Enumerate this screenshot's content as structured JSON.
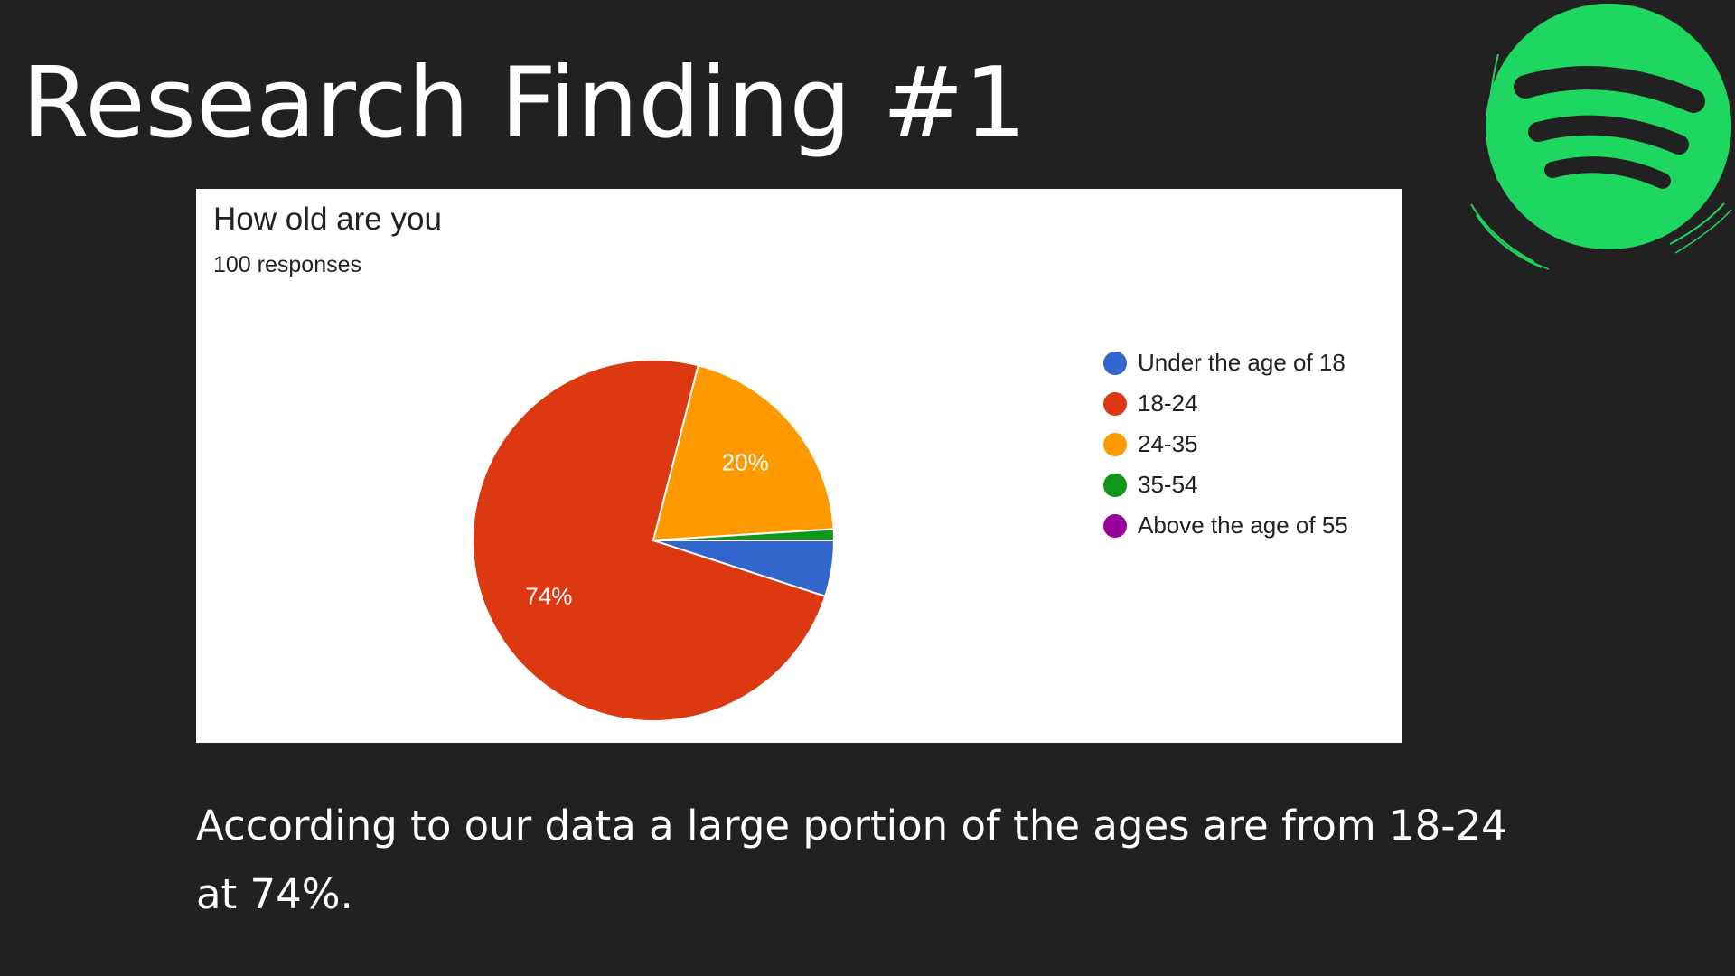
{
  "slide": {
    "title": "Research Finding #1",
    "caption": "According to our data a large portion of the ages are from 18-24 at 74%."
  },
  "logo": {
    "icon": "spotify-logo-icon",
    "color": "#1ed760"
  },
  "chart_data": {
    "type": "pie",
    "title": "How old are you",
    "subtitle": "100 responses",
    "legend_position": "right",
    "slices": [
      {
        "label": "Under the age of 18",
        "value": 5,
        "color": "#3366cc",
        "data_label": ""
      },
      {
        "label": "18-24",
        "value": 74,
        "color": "#dc3912",
        "data_label": "74%"
      },
      {
        "label": "24-35",
        "value": 20,
        "color": "#ff9900",
        "data_label": "20%"
      },
      {
        "label": "35-54",
        "value": 1,
        "color": "#109618",
        "data_label": ""
      },
      {
        "label": "Above the age of 55",
        "value": 0,
        "color": "#990099",
        "data_label": ""
      }
    ]
  }
}
